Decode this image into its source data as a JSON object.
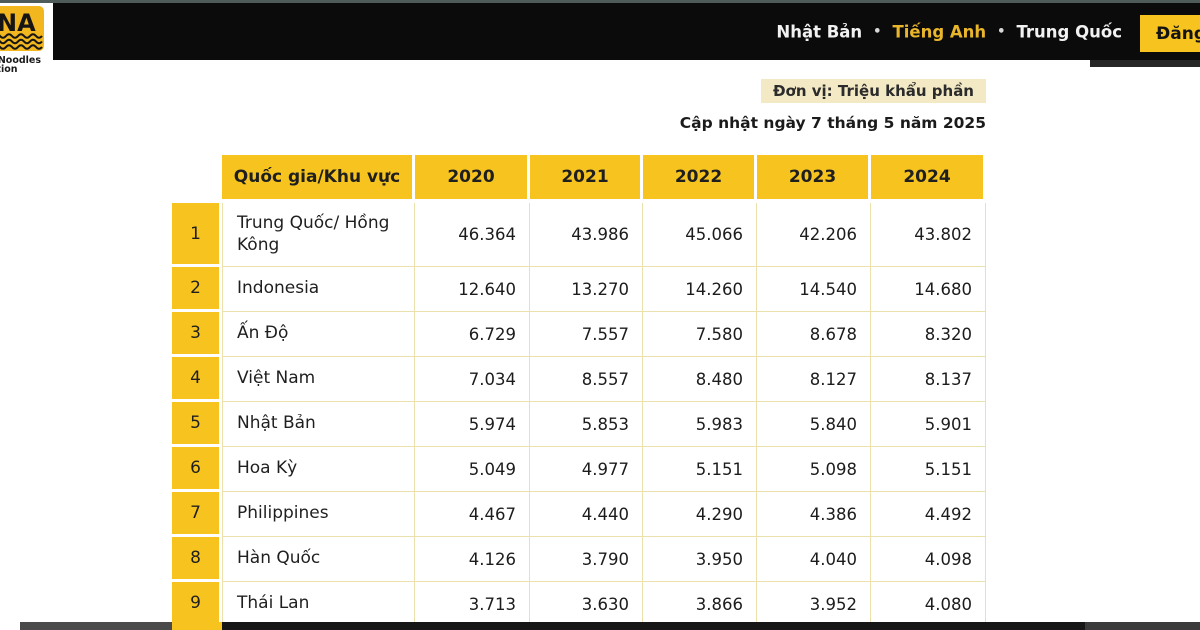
{
  "brand": {
    "logo_text": "NA",
    "logo_sub1": "t Noodles",
    "logo_sub2": "ation"
  },
  "nav": {
    "languages": [
      {
        "label": "Nhật Bản"
      },
      {
        "label": "Tiếng Anh"
      },
      {
        "label": "Trung Quốc"
      }
    ],
    "separator": "•",
    "login_label": "Đăng nhập"
  },
  "info": {
    "unit_label": "Đơn vị: Triệu khẩu phần",
    "updated_label": "Cập nhật ngày 7 tháng 5 năm 2025"
  },
  "table": {
    "country_header": "Quốc gia/Khu vực",
    "year_headers": [
      "2020",
      "2021",
      "2022",
      "2023",
      "2024"
    ],
    "rows": [
      {
        "rank": "1",
        "country": "Trung Quốc/ Hồng Kông",
        "values": [
          "46.364",
          "43.986",
          "45.066",
          "42.206",
          "43.802"
        ]
      },
      {
        "rank": "2",
        "country": "Indonesia",
        "values": [
          "12.640",
          "13.270",
          "14.260",
          "14.540",
          "14.680"
        ]
      },
      {
        "rank": "3",
        "country": "Ấn Độ",
        "values": [
          "6.729",
          "7.557",
          "7.580",
          "8.678",
          "8.320"
        ]
      },
      {
        "rank": "4",
        "country": "Việt Nam",
        "values": [
          "7.034",
          "8.557",
          "8.480",
          "8.127",
          "8.137"
        ]
      },
      {
        "rank": "5",
        "country": "Nhật Bản",
        "values": [
          "5.974",
          "5.853",
          "5.983",
          "5.840",
          "5.901"
        ]
      },
      {
        "rank": "6",
        "country": "Hoa Kỳ",
        "values": [
          "5.049",
          "4.977",
          "5.151",
          "5.098",
          "5.151"
        ]
      },
      {
        "rank": "7",
        "country": "Philippines",
        "values": [
          "4.467",
          "4.440",
          "4.290",
          "4.386",
          "4.492"
        ]
      },
      {
        "rank": "8",
        "country": "Hàn Quốc",
        "values": [
          "4.126",
          "3.790",
          "3.950",
          "4.040",
          "4.098"
        ]
      },
      {
        "rank": "9",
        "country": "Thái Lan",
        "values": [
          "3.713",
          "3.630",
          "3.866",
          "3.952",
          "4.080"
        ]
      }
    ]
  },
  "colors": {
    "accent_yellow": "#F7C41F",
    "pale_border": "#ECE0AC",
    "topbar_black": "#0B0B0B",
    "unit_badge_bg": "#F4E9C5",
    "active_lang_yellow": "#E9B62B",
    "top_strip": "#4E5B59"
  }
}
